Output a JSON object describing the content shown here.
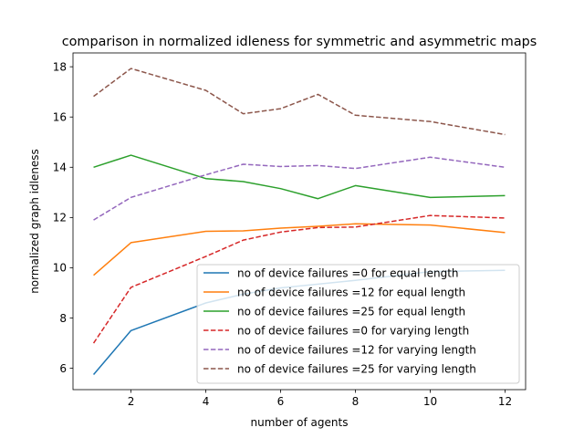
{
  "chart_data": {
    "type": "line",
    "title": "comparison in normalized idleness for symmetric and asymmetric maps",
    "xlabel": "number of agents",
    "ylabel": "normalized graph idleness",
    "x": [
      1,
      2,
      4,
      5,
      6,
      7,
      8,
      10,
      12
    ],
    "xlim": [
      0.45,
      12.55
    ],
    "ylim": [
      5.15,
      18.55
    ],
    "xticks": [
      2,
      4,
      6,
      8,
      10,
      12
    ],
    "yticks": [
      6,
      8,
      10,
      12,
      14,
      16,
      18
    ],
    "grid": false,
    "legend_position": "lower-right",
    "series": [
      {
        "name": "no of device failures =0 for equal length",
        "color": "#1f77b4",
        "style": "solid",
        "values": [
          5.75,
          7.5,
          8.6,
          8.95,
          9.2,
          9.35,
          9.5,
          9.85,
          9.9
        ]
      },
      {
        "name": "no of device failures =12 for equal length",
        "color": "#ff7f0e",
        "style": "solid",
        "values": [
          9.7,
          11.0,
          11.45,
          11.47,
          11.58,
          11.65,
          11.75,
          11.7,
          11.4
        ]
      },
      {
        "name": "no of device failures =25 for equal length",
        "color": "#2ca02c",
        "style": "solid",
        "values": [
          14.0,
          14.48,
          13.55,
          13.43,
          13.15,
          12.75,
          13.27,
          12.8,
          12.87
        ]
      },
      {
        "name": "no of device failures =0 for varying length",
        "color": "#d62728",
        "style": "dashed",
        "values": [
          7.0,
          9.22,
          10.45,
          11.1,
          11.42,
          11.6,
          11.62,
          12.08,
          11.98
        ]
      },
      {
        "name": "no of device failures =12 for varying length",
        "color": "#9467bd",
        "style": "dashed",
        "values": [
          11.9,
          12.8,
          13.7,
          14.12,
          14.03,
          14.07,
          13.95,
          14.4,
          14.0
        ]
      },
      {
        "name": "no of device failures =25 for varying length",
        "color": "#8c564b",
        "style": "dashed",
        "values": [
          16.82,
          17.93,
          17.06,
          16.13,
          16.33,
          16.9,
          16.07,
          15.82,
          15.3
        ]
      }
    ]
  }
}
